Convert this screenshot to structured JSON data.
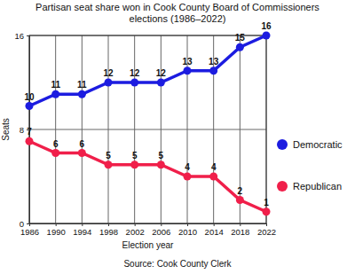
{
  "chart_data": {
    "type": "line",
    "title": "Partisan seat share won in Cook County Board of Commissioners elections (1986–2022)",
    "x_label": "Election year",
    "y_label": "Seats",
    "source": "Source: Cook County Clerk",
    "x": [
      1986,
      1990,
      1994,
      1998,
      2002,
      2006,
      2010,
      2014,
      2018,
      2022
    ],
    "series": [
      {
        "name": "Democratic",
        "color": "#1c1ce0",
        "marker": "circle",
        "values": [
          10,
          11,
          11,
          12,
          12,
          12,
          13,
          13,
          15,
          16
        ]
      },
      {
        "name": "Republican",
        "color": "#f01f4a",
        "marker": "circle",
        "values": [
          7,
          6,
          6,
          5,
          5,
          5,
          4,
          4,
          2,
          1
        ]
      }
    ],
    "xlim": [
      1986,
      2022
    ],
    "xticks": [
      1986,
      1990,
      1994,
      1998,
      2002,
      2006,
      2010,
      2014,
      2018,
      2022
    ],
    "ylim": [
      0,
      16
    ],
    "yticks": [
      0,
      8,
      16
    ],
    "grid": true,
    "legend": "right",
    "data_labels": true
  }
}
